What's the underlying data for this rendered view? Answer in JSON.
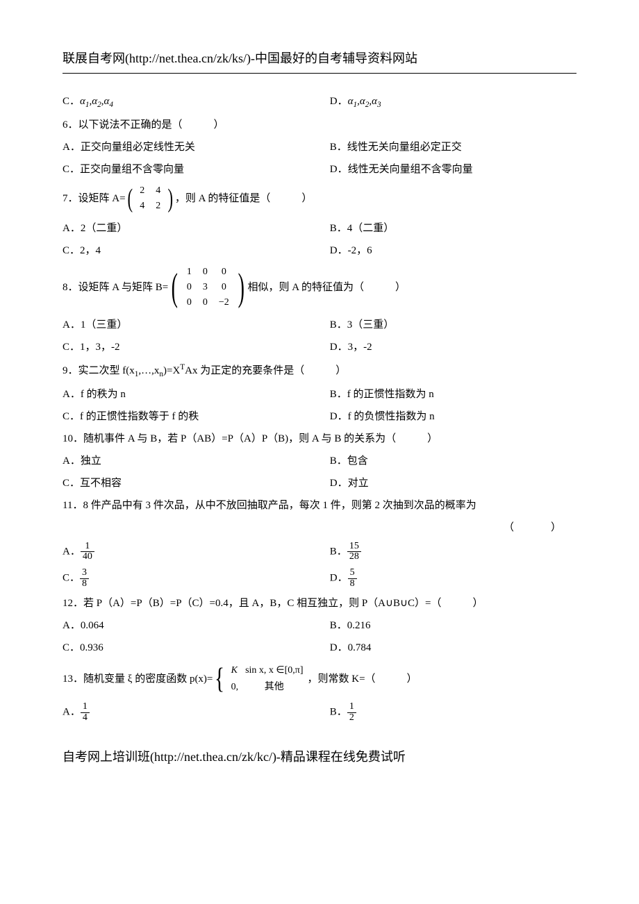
{
  "header": "联展自考网(http://net.thea.cn/zk/ks/)-中国最好的自考辅导资料网站",
  "footer": "自考网上培训班(http://net.thea.cn/zk/kc/)-精品课程在线免费试听",
  "p5C_lbl": "C．",
  "p5C_val": "α₁,α₂,α₄",
  "p5D_lbl": "D．",
  "p5D_val": "α₁,α₂,α₃",
  "q6": "6．以下说法不正确的是（　　　）",
  "q6A": "A．正交向量组必定线性无关",
  "q6B": "B．线性无关向量组必定正交",
  "q6C": "C．正交向量组不含零向量",
  "q6D": "D．线性无关向量组不含零向量",
  "q7_pre": "7．设矩阵 A=",
  "q7_post": "，则 A 的特征值是（　　　）",
  "q7m": [
    [
      "2",
      "4"
    ],
    [
      "4",
      "2"
    ]
  ],
  "q7A": "A．2（二重）",
  "q7B": "B．4（二重）",
  "q7C": "C．2，4",
  "q7D": "D．-2，6",
  "q8_pre": "8．设矩阵 A 与矩阵 B=",
  "q8_post": "相似，则 A 的特征值为（　　　）",
  "q8m": [
    [
      "1",
      "0",
      "0"
    ],
    [
      "0",
      "3",
      "0"
    ],
    [
      "0",
      "0",
      "−2"
    ]
  ],
  "q8A": "A．1（三重）",
  "q8B": "B．3（三重）",
  "q8C": "C．1，3，-2",
  "q8D": "D．3，-2",
  "q9_a": "9．实二次型 f(x",
  "q9_b": ",…,x",
  "q9_c": ")=X",
  "q9_d": "Ax 为正定的充要条件是（　　　）",
  "q9A": "A．f 的秩为 n",
  "q9B": "B．f 的正惯性指数为 n",
  "q9C": "C．f 的正惯性指数等于 f 的秩",
  "q9D": "D．f 的负惯性指数为 n",
  "q10": "10．随机事件 A 与 B，若 P（AB）=P（A）P（B)，则 A 与 B 的关系为（　　　）",
  "q10A": "A．独立",
  "q10B": "B．包含",
  "q10C": "C．互不相容",
  "q10D": "D．对立",
  "q11": "11．8 件产品中有 3 件次品，从中不放回抽取产品，每次 1 件，则第 2 次抽到次品的概率为",
  "q11_blank": "（　　　）",
  "q11A": "A．",
  "q11A_num": "1",
  "q11A_den": "40",
  "q11B": "B．",
  "q11B_num": "15",
  "q11B_den": "28",
  "q11C": "C．",
  "q11C_num": "3",
  "q11C_den": "8",
  "q11D": "D．",
  "q11D_num": "5",
  "q11D_den": "8",
  "q12": "12．若 P（A）=P（B）=P（C）=0.4，且 A，B，C 相互独立，则 P（A∪B∪C）=（　　　）",
  "q12A": "A．0.064",
  "q12B": "B．0.216",
  "q12C": "C．0.936",
  "q12D": "D．0.784",
  "q13_pre": "13．随机变量 ξ 的密度函数 p(x)=",
  "q13_post": "，则常数 K=（　　　）",
  "q13_c1a": "K",
  "q13_c1b": "sin x, x ∈[0,π]",
  "q13_c2a": "0,",
  "q13_c2b": "其他",
  "q13A": "A．",
  "q13A_num": "1",
  "q13A_den": "4",
  "q13B": "B．",
  "q13B_num": "1",
  "q13B_den": "2",
  "sub1": "1",
  "subn": "n",
  "supT": "T"
}
